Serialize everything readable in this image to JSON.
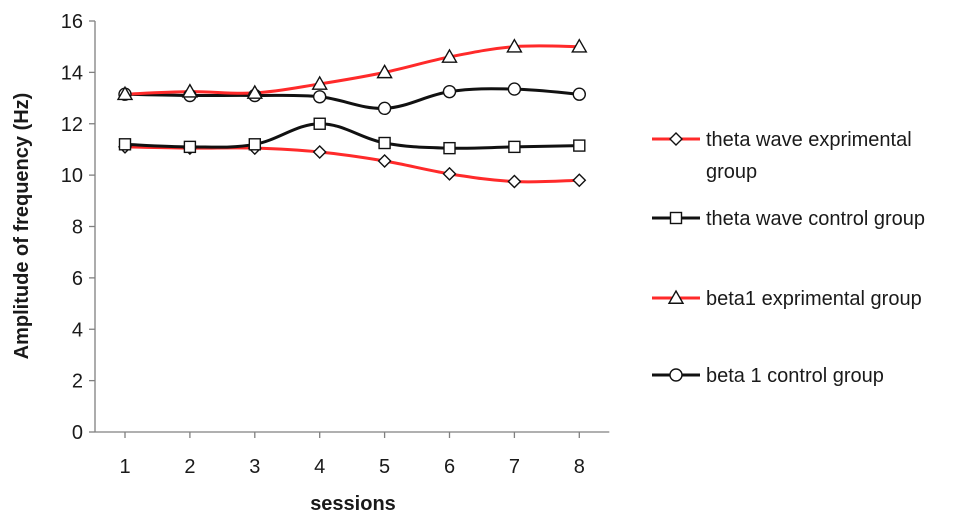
{
  "chart_data": {
    "type": "line",
    "xlabel": "sessions",
    "ylabel": "Amplitude of frequency (Hz)",
    "categories": [
      "1",
      "2",
      "3",
      "4",
      "5",
      "6",
      "7",
      "8"
    ],
    "ylim": [
      0,
      16
    ],
    "yticks": [
      0,
      2,
      4,
      6,
      8,
      10,
      12,
      14,
      16
    ],
    "grid": false,
    "legend_position": "right",
    "series": [
      {
        "name": "theta wave exprimental group",
        "legend_lines": [
          "theta wave exprimental",
          "group"
        ],
        "color": "#ff2a2a",
        "marker": "diamond",
        "values": [
          11.1,
          11.05,
          11.05,
          10.9,
          10.55,
          10.05,
          9.75,
          9.8
        ]
      },
      {
        "name": "theta wave control group",
        "legend_lines": [
          "theta wave control group"
        ],
        "color": "#111111",
        "marker": "square",
        "values": [
          11.2,
          11.1,
          11.2,
          12.0,
          11.25,
          11.05,
          11.1,
          11.15
        ]
      },
      {
        "name": "beta1 exprimental group",
        "legend_lines": [
          "beta1 exprimental group"
        ],
        "color": "#ff2a2a",
        "marker": "triangle",
        "values": [
          13.15,
          13.25,
          13.2,
          13.55,
          14.0,
          14.6,
          15.0,
          15.0
        ]
      },
      {
        "name": "beta 1 control group",
        "legend_lines": [
          "beta 1 control group"
        ],
        "color": "#111111",
        "marker": "circle",
        "values": [
          13.15,
          13.1,
          13.1,
          13.05,
          12.6,
          13.25,
          13.35,
          13.15
        ]
      }
    ]
  }
}
